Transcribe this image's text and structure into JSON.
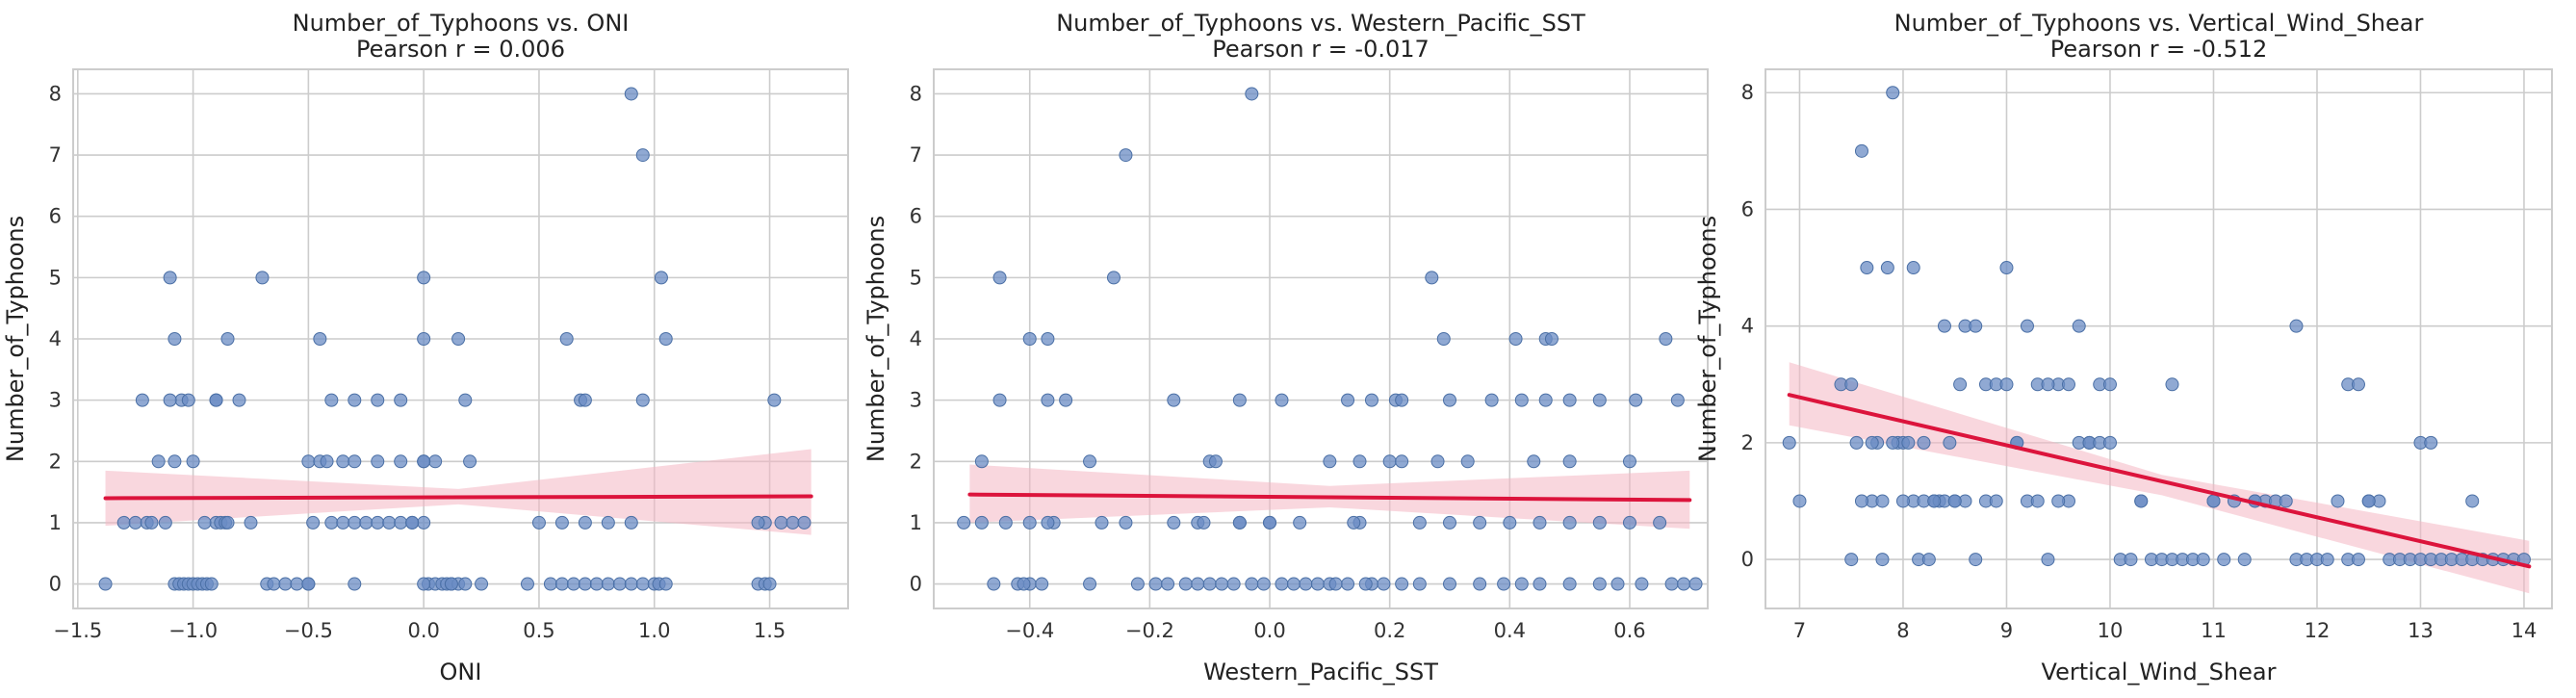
{
  "chart_data": [
    {
      "type": "scatter",
      "title": "Number_of_Typhoons vs. ONI",
      "subtitle": "Pearson r = 0.006",
      "xlabel": "ONI",
      "ylabel": "Number_of_Typhoons",
      "xlim": [
        -1.52,
        1.84
      ],
      "ylim": [
        -0.4,
        8.4
      ],
      "xticks": [
        -1.5,
        -1.0,
        -0.5,
        0.0,
        0.5,
        1.0,
        1.5
      ],
      "xtick_labels": [
        "−1.5",
        "−1.0",
        "−0.5",
        "0.0",
        "0.5",
        "1.0",
        "1.5"
      ],
      "yticks": [
        0,
        1,
        2,
        3,
        4,
        5,
        6,
        7,
        8
      ],
      "ytick_labels": [
        "0",
        "1",
        "2",
        "3",
        "4",
        "5",
        "6",
        "7",
        "8"
      ],
      "grid": true,
      "point_color": "#6b8cc4",
      "line_color": "#dc143c",
      "band_color": "#f4b6c2",
      "regression": {
        "x": [
          -1.38,
          1.68
        ],
        "y": [
          1.4,
          1.43
        ]
      },
      "band": {
        "x": [
          -1.38,
          0.15,
          1.68
        ],
        "lower": [
          0.95,
          1.3,
          0.8
        ],
        "upper": [
          1.85,
          1.55,
          2.2
        ]
      },
      "points": {
        "x": [
          -1.38,
          -1.3,
          -1.25,
          -1.22,
          -1.2,
          -1.18,
          -1.15,
          -1.12,
          -1.08,
          -1.06,
          -1.04,
          -1.02,
          -1.0,
          -0.98,
          -0.96,
          -0.94,
          -0.92,
          -0.9,
          -0.88,
          -0.86,
          -1.1,
          -1.08,
          -1.05,
          -1.02,
          -1.0,
          -0.95,
          -0.9,
          -0.85,
          -0.8,
          -0.75,
          -0.7,
          -1.1,
          -1.08,
          -0.9,
          -0.85,
          -0.68,
          -0.65,
          -0.6,
          -0.55,
          -0.5,
          -0.48,
          -0.45,
          -0.4,
          -0.35,
          -0.3,
          -0.25,
          -0.2,
          -0.15,
          -0.1,
          -0.05,
          0.0,
          0.02,
          0.05,
          0.08,
          0.1,
          0.12,
          0.15,
          0.18,
          -0.5,
          -0.45,
          -0.42,
          -0.35,
          -0.3,
          -0.2,
          -0.1,
          0.0,
          0.05,
          0.2,
          0.25,
          -0.4,
          -0.3,
          -0.2,
          -0.1,
          0.0,
          0.15,
          0.18,
          0.45,
          0.55,
          0.6,
          0.65,
          0.7,
          0.75,
          0.8,
          0.85,
          0.9,
          0.95,
          1.0,
          1.02,
          1.05,
          0.5,
          0.6,
          0.7,
          0.8,
          0.9,
          0.68,
          0.7,
          0.95,
          0.62,
          1.05,
          0.0,
          1.03,
          0.9,
          0.95,
          1.45,
          1.48,
          1.5,
          1.55,
          1.6,
          1.65,
          1.52,
          1.48,
          1.45,
          0.0,
          -0.5,
          -0.3,
          0.12,
          0.0,
          -0.05
        ],
        "y": [
          0,
          1,
          1,
          3,
          1,
          1,
          2,
          1,
          0,
          0,
          0,
          0,
          0,
          0,
          0,
          0,
          0,
          1,
          1,
          1,
          5,
          4,
          3,
          3,
          2,
          1,
          3,
          4,
          3,
          1,
          5,
          3,
          2,
          3,
          1,
          0,
          0,
          0,
          0,
          0,
          1,
          4,
          1,
          1,
          1,
          1,
          1,
          1,
          1,
          1,
          1,
          0,
          0,
          0,
          0,
          0,
          0,
          0,
          2,
          2,
          2,
          2,
          2,
          2,
          2,
          2,
          2,
          2,
          0,
          3,
          3,
          3,
          3,
          4,
          4,
          3,
          0,
          0,
          0,
          0,
          0,
          0,
          0,
          0,
          0,
          0,
          0,
          0,
          0,
          1,
          1,
          1,
          1,
          1,
          3,
          3,
          3,
          4,
          4,
          5,
          5,
          8,
          7,
          0,
          0,
          0,
          1,
          1,
          1,
          3,
          1,
          1,
          0,
          0,
          0,
          0,
          2,
          1
        ]
      }
    },
    {
      "type": "scatter",
      "title": "Number_of_Typhoons vs. Western_Pacific_SST",
      "subtitle": "Pearson r = -0.017",
      "xlabel": "Western_Pacific_SST",
      "ylabel": "Number_of_Typhoons",
      "xlim": [
        -0.56,
        0.73
      ],
      "ylim": [
        -0.4,
        8.4
      ],
      "xticks": [
        -0.4,
        -0.2,
        0.0,
        0.2,
        0.4,
        0.6
      ],
      "xtick_labels": [
        "−0.4",
        "−0.2",
        "0.0",
        "0.2",
        "0.4",
        "0.6"
      ],
      "yticks": [
        0,
        1,
        2,
        3,
        4,
        5,
        6,
        7,
        8
      ],
      "ytick_labels": [
        "0",
        "1",
        "2",
        "3",
        "4",
        "5",
        "6",
        "7",
        "8"
      ],
      "grid": true,
      "point_color": "#6b8cc4",
      "line_color": "#dc143c",
      "band_color": "#f4b6c2",
      "regression": {
        "x": [
          -0.5,
          0.7
        ],
        "y": [
          1.46,
          1.37
        ]
      },
      "band": {
        "x": [
          -0.5,
          0.1,
          0.7
        ],
        "lower": [
          1.0,
          1.25,
          0.9
        ],
        "upper": [
          1.95,
          1.6,
          1.85
        ]
      },
      "points": {
        "x": [
          -0.51,
          -0.48,
          -0.44,
          -0.42,
          -0.4,
          -0.38,
          -0.36,
          -0.3,
          -0.28,
          -0.22,
          -0.19,
          -0.17,
          -0.14,
          -0.12,
          -0.1,
          -0.08,
          -0.06,
          -0.05,
          -0.03,
          -0.01,
          0.02,
          0.04,
          0.06,
          0.08,
          0.1,
          0.13,
          0.17,
          0.19,
          0.22,
          0.25,
          0.3,
          0.35,
          0.39,
          0.42,
          0.45,
          0.5,
          0.55,
          0.58,
          0.62,
          0.67,
          0.69,
          0.71,
          -0.4,
          -0.3,
          -0.16,
          -0.12,
          -0.1,
          -0.05,
          0.0,
          0.05,
          0.1,
          0.15,
          0.2,
          0.25,
          0.3,
          0.35,
          0.4,
          0.45,
          0.5,
          0.55,
          0.6,
          0.65,
          -0.48,
          -0.37,
          -0.24,
          -0.11,
          -0.09,
          0.0,
          0.14,
          0.22,
          0.28,
          0.33,
          0.44,
          0.5,
          0.6,
          -0.45,
          -0.37,
          -0.34,
          -0.16,
          -0.05,
          0.02,
          0.13,
          0.17,
          0.21,
          0.3,
          0.37,
          0.42,
          0.46,
          0.5,
          0.55,
          0.61,
          0.68,
          -0.45,
          -0.4,
          -0.37,
          -0.26,
          0.15,
          0.22,
          0.29,
          0.41,
          0.46,
          0.47,
          0.66,
          0.27,
          -0.24,
          -0.03,
          -0.46,
          -0.41,
          0.16,
          0.11
        ],
        "y": [
          1,
          2,
          1,
          0,
          0,
          0,
          1,
          0,
          1,
          0,
          0,
          0,
          0,
          0,
          0,
          0,
          0,
          1,
          0,
          0,
          0,
          0,
          0,
          0,
          0,
          0,
          0,
          0,
          0,
          0,
          0,
          0,
          0,
          0,
          0,
          0,
          0,
          0,
          0,
          0,
          0,
          0,
          1,
          2,
          1,
          1,
          2,
          1,
          1,
          1,
          2,
          1,
          2,
          1,
          1,
          1,
          1,
          1,
          1,
          1,
          1,
          1,
          1,
          1,
          1,
          1,
          2,
          1,
          1,
          2,
          2,
          2,
          2,
          2,
          2,
          3,
          3,
          3,
          3,
          3,
          3,
          3,
          3,
          3,
          3,
          3,
          3,
          3,
          3,
          3,
          3,
          3,
          5,
          4,
          4,
          5,
          2,
          3,
          4,
          4,
          4,
          4,
          4,
          5,
          7,
          8,
          0,
          0,
          0,
          0
        ]
      }
    },
    {
      "type": "scatter",
      "title": "Number_of_Typhoons vs. Vertical_Wind_Shear",
      "subtitle": "Pearson r = -0.512",
      "xlabel": "Vertical_Wind_Shear",
      "ylabel": "Number_of_Typhoons",
      "xlim": [
        6.67,
        14.27
      ],
      "ylim": [
        -0.84,
        8.4
      ],
      "xticks": [
        7,
        8,
        9,
        10,
        11,
        12,
        13,
        14
      ],
      "xtick_labels": [
        "7",
        "8",
        "9",
        "10",
        "11",
        "12",
        "13",
        "14"
      ],
      "yticks": [
        0,
        2,
        4,
        6,
        8
      ],
      "ytick_labels": [
        "0",
        "2",
        "4",
        "6",
        "8"
      ],
      "grid": true,
      "point_color": "#6b8cc4",
      "line_color": "#dc143c",
      "band_color": "#f4b6c2",
      "regression": {
        "x": [
          6.9,
          14.05
        ],
        "y": [
          2.82,
          -0.12
        ]
      },
      "band": {
        "x": [
          6.9,
          10.5,
          14.05
        ],
        "lower": [
          2.3,
          1.1,
          -0.58
        ],
        "upper": [
          3.38,
          1.45,
          0.32
        ]
      },
      "points": {
        "x": [
          6.9,
          7.0,
          7.4,
          7.5,
          7.55,
          7.6,
          7.65,
          7.7,
          7.75,
          7.8,
          7.85,
          7.9,
          7.95,
          8.0,
          8.05,
          8.1,
          8.15,
          8.2,
          8.25,
          8.3,
          8.35,
          8.4,
          8.45,
          8.5,
          8.55,
          8.6,
          8.7,
          8.8,
          8.9,
          9.0,
          9.1,
          9.2,
          9.3,
          9.4,
          9.5,
          9.6,
          9.7,
          9.8,
          9.9,
          10.0,
          10.1,
          10.2,
          10.3,
          10.4,
          10.5,
          10.6,
          10.7,
          10.8,
          10.9,
          11.0,
          11.1,
          11.2,
          11.3,
          11.4,
          11.5,
          11.6,
          11.7,
          11.8,
          11.9,
          12.0,
          12.1,
          12.2,
          12.3,
          12.4,
          12.5,
          12.6,
          12.7,
          12.8,
          12.9,
          13.0,
          13.1,
          13.2,
          13.3,
          13.4,
          13.5,
          13.6,
          13.7,
          13.8,
          13.9,
          14.0,
          7.5,
          7.6,
          7.7,
          7.8,
          7.9,
          8.0,
          8.1,
          8.2,
          8.3,
          8.4,
          8.5,
          8.6,
          8.7,
          8.8,
          8.9,
          9.0,
          9.1,
          9.2,
          9.3,
          9.4,
          9.5,
          9.6,
          9.7,
          9.8,
          9.9,
          10.0,
          10.3,
          10.6,
          11.0,
          11.4,
          11.8,
          12.3,
          12.4,
          12.5,
          13.0,
          13.1,
          13.5
        ],
        "y": [
          2,
          1,
          3,
          0,
          2,
          7,
          5,
          1,
          2,
          0,
          5,
          8,
          2,
          2,
          2,
          1,
          0,
          2,
          0,
          1,
          1,
          1,
          2,
          1,
          3,
          1,
          0,
          3,
          3,
          3,
          2,
          1,
          3,
          0,
          3,
          1,
          4,
          2,
          3,
          3,
          0,
          0,
          1,
          0,
          0,
          0,
          0,
          0,
          0,
          1,
          0,
          1,
          0,
          1,
          1,
          1,
          1,
          0,
          0,
          0,
          0,
          1,
          0,
          0,
          1,
          1,
          0,
          0,
          0,
          0,
          0,
          0,
          0,
          0,
          0,
          0,
          0,
          0,
          0,
          0,
          3,
          1,
          2,
          1,
          2,
          1,
          5,
          1,
          1,
          4,
          1,
          4,
          4,
          1,
          1,
          5,
          2,
          4,
          1,
          3,
          1,
          3,
          2,
          2,
          2,
          2,
          1,
          3,
          1,
          1,
          4,
          3,
          3,
          1,
          2,
          2,
          1
        ]
      }
    }
  ]
}
